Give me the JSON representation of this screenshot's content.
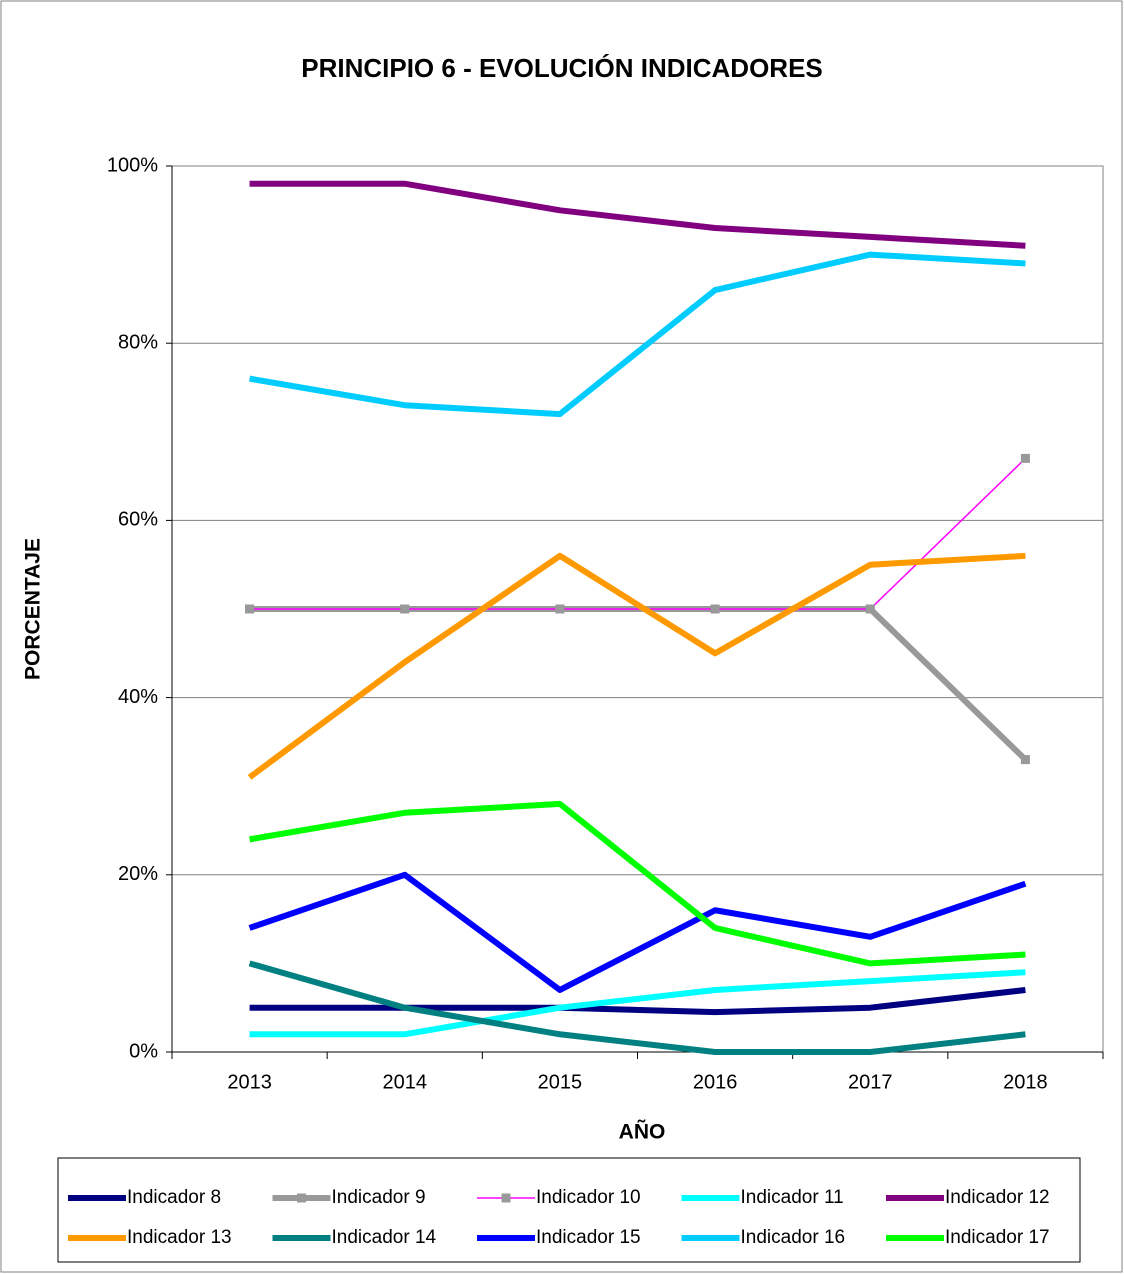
{
  "chart_data": {
    "type": "line",
    "title": "PRINCIPIO 6 - EVOLUCIÓN INDICADORES",
    "x_label": "AÑO",
    "y_label": "PORCENTAJE",
    "categories": [
      "2013",
      "2014",
      "2015",
      "2016",
      "2017",
      "2018"
    ],
    "ylim": [
      0,
      100
    ],
    "yticks": [
      {
        "value": 0,
        "label": "0%"
      },
      {
        "value": 20,
        "label": "20%"
      },
      {
        "value": 40,
        "label": "40%"
      },
      {
        "value": 60,
        "label": "60%"
      },
      {
        "value": 80,
        "label": "80%"
      },
      {
        "value": 100,
        "label": "100%"
      }
    ],
    "grid": true,
    "legend": "bottom",
    "series": [
      {
        "name": "Indicador 8",
        "color": "#000080",
        "line_width": 6,
        "values": [
          5,
          5,
          5,
          4.5,
          5,
          7
        ]
      },
      {
        "name": "Indicador 9",
        "color": "#999999",
        "line_width": 6,
        "marker": "square",
        "marker_color": "#999999",
        "values": [
          50,
          50,
          50,
          50,
          50,
          33
        ]
      },
      {
        "name": "Indicador 10",
        "color": "#ff00ff",
        "line_width": 1.5,
        "marker": "square",
        "marker_color": "#999999",
        "values": [
          50,
          50,
          50,
          50,
          50,
          67
        ]
      },
      {
        "name": "Indicador 11",
        "color": "#00ffff",
        "line_width": 6,
        "values": [
          2,
          2,
          5,
          7,
          8,
          9
        ]
      },
      {
        "name": "Indicador 12",
        "color": "#800080",
        "line_width": 6,
        "values": [
          98,
          98,
          95,
          93,
          92,
          91
        ]
      },
      {
        "name": "Indicador 13",
        "color": "#ff9900",
        "line_width": 6,
        "values": [
          31,
          44,
          56,
          45,
          55,
          56
        ]
      },
      {
        "name": "Indicador 14",
        "color": "#008080",
        "line_width": 6,
        "values": [
          10,
          5,
          2,
          0,
          0,
          2
        ]
      },
      {
        "name": "Indicador 15",
        "color": "#0000ff",
        "line_width": 6,
        "values": [
          14,
          20,
          7,
          16,
          13,
          19
        ]
      },
      {
        "name": "Indicador 16",
        "color": "#00ccff",
        "line_width": 6,
        "values": [
          76,
          73,
          72,
          86,
          90,
          89
        ]
      },
      {
        "name": "Indicador 17",
        "color": "#00ff00",
        "line_width": 6,
        "values": [
          24,
          27,
          28,
          14,
          10,
          11
        ]
      }
    ]
  }
}
